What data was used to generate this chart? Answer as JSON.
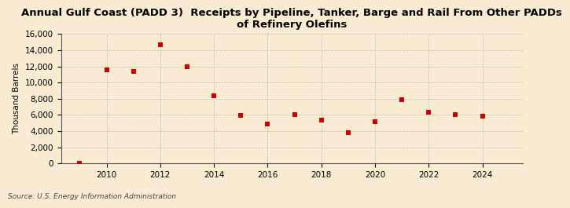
{
  "title": "Annual Gulf Coast (PADD 3)  Receipts by Pipeline, Tanker, Barge and Rail From Other PADDs\nof Refinery Olefins",
  "ylabel": "Thousand Barrels",
  "source": "Source: U.S. Energy Information Administration",
  "years": [
    2009,
    2010,
    2011,
    2012,
    2013,
    2014,
    2015,
    2016,
    2017,
    2018,
    2019,
    2020,
    2021,
    2022,
    2023,
    2024
  ],
  "values": [
    50,
    11600,
    11400,
    14700,
    12000,
    8400,
    5900,
    4900,
    6000,
    5400,
    3800,
    5200,
    7900,
    6300,
    6000,
    5800
  ],
  "marker_color": "#cc0000",
  "marker": "s",
  "marker_size": 20,
  "ylim": [
    0,
    16000
  ],
  "yticks": [
    0,
    2000,
    4000,
    6000,
    8000,
    10000,
    12000,
    14000,
    16000
  ],
  "xlim": [
    2008.3,
    2025.5
  ],
  "xticks": [
    2010,
    2012,
    2014,
    2016,
    2018,
    2020,
    2022,
    2024
  ],
  "background_color": "#faecd2",
  "grid_color": "#bbbbbb",
  "title_fontsize": 9.5,
  "axis_label_fontsize": 7.5,
  "tick_fontsize": 7.5,
  "source_fontsize": 6.5
}
